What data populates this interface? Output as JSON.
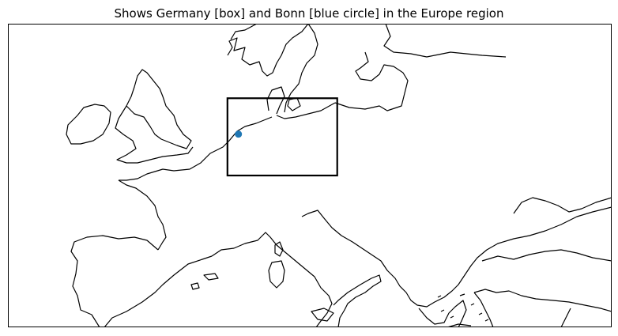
{
  "map": {
    "title": "Shows Germany [box] and Bonn [blue circle] in the Europe region",
    "projection": "PlateCarree",
    "extent_deg": {
      "lon_min": -12,
      "lon_max": 32,
      "lat_min": 34,
      "lat_max": 56
    },
    "coastline_color": "#000000",
    "box": {
      "name": "Germany",
      "lon_min": 4,
      "lon_max": 12,
      "lat_min": 45,
      "lat_max": 50.6,
      "color": "#000000"
    },
    "marker": {
      "name": "Bonn",
      "lon": 4.8,
      "lat": 48.0,
      "color": "#1f77b4"
    }
  }
}
